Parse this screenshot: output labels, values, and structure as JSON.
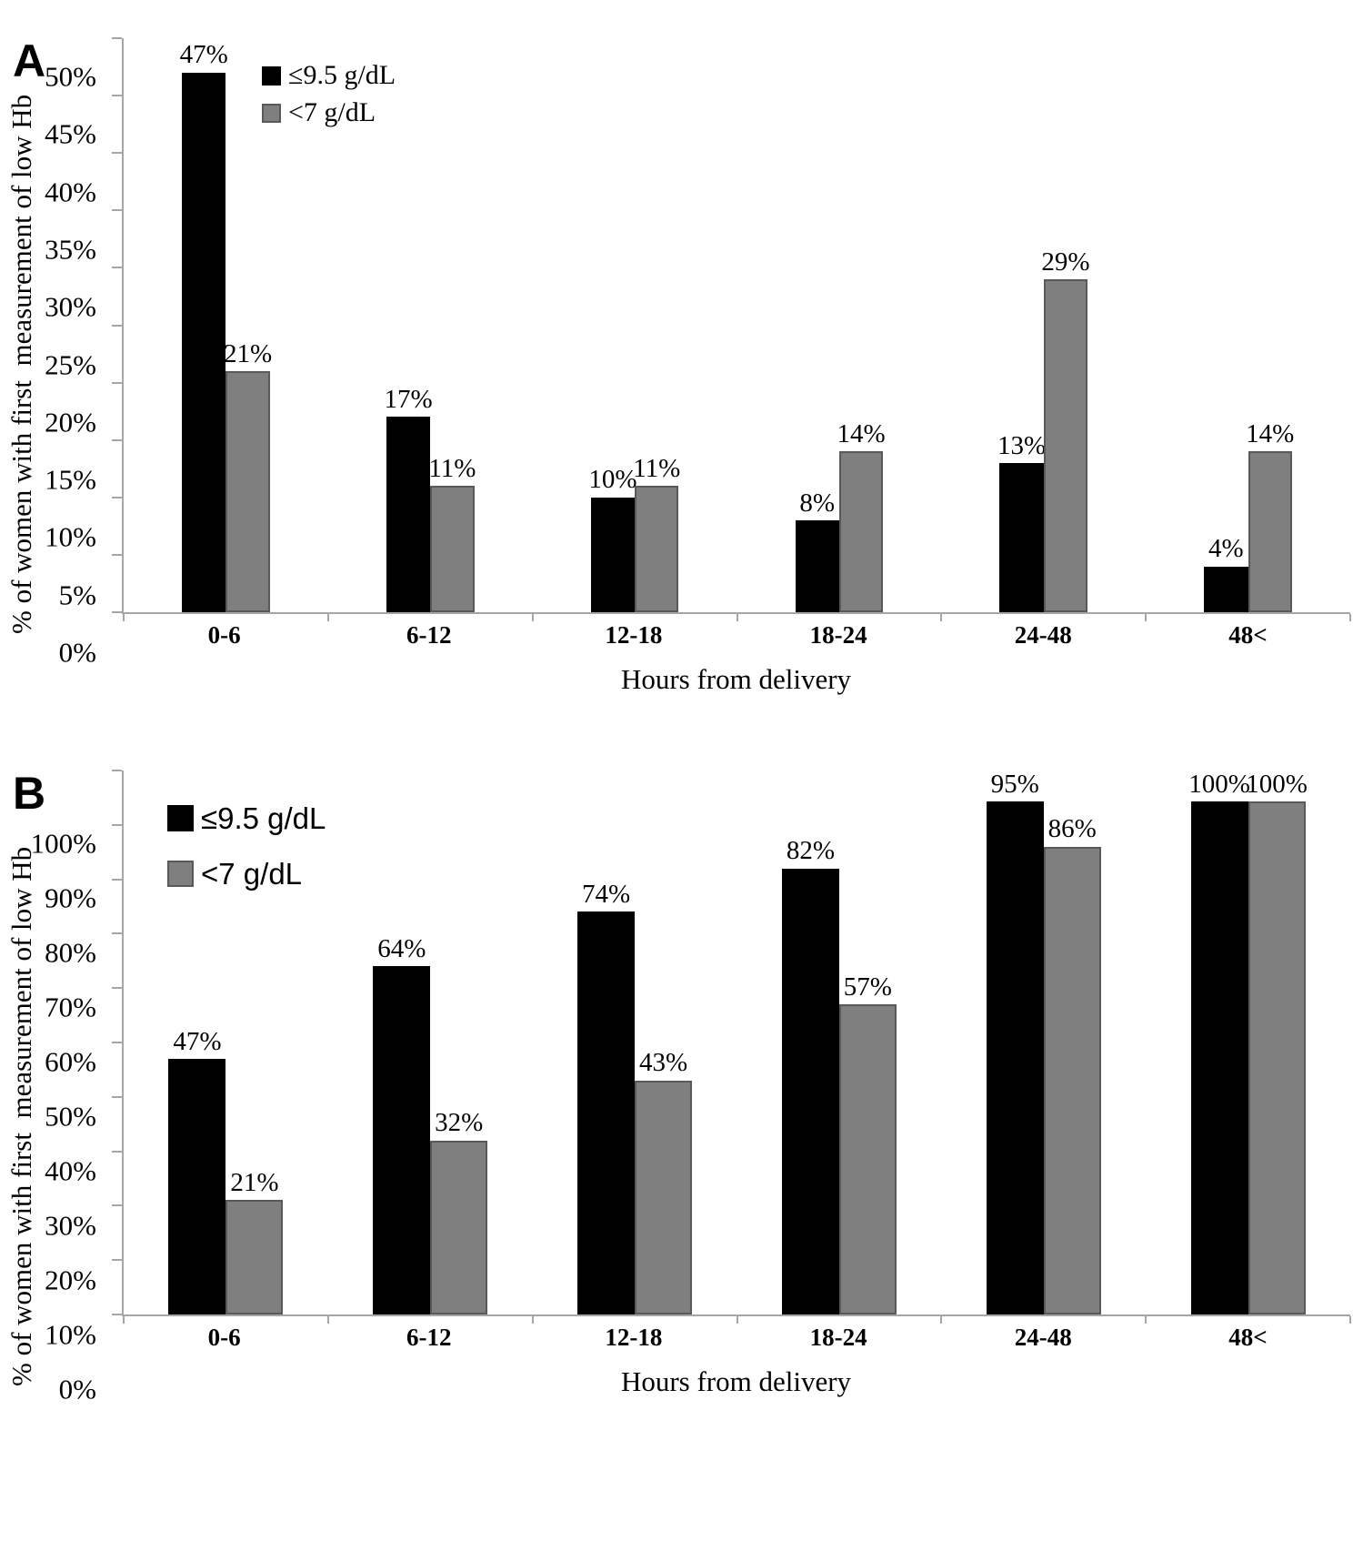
{
  "figure": {
    "axis_color": "#a6a6a6",
    "background": "#ffffff",
    "series_colors": {
      "le_9_5": "#000000",
      "lt_7": "#7f7f7f"
    }
  },
  "chart_data": [
    {
      "type": "bar",
      "panel_letter": "A",
      "title": "",
      "categories": [
        "0-6",
        "6-12",
        "12-18",
        "18-24",
        "24-48",
        "48<"
      ],
      "series": [
        {
          "name": "≤9.5 g/dL",
          "color": "#000000",
          "border": "#000000",
          "values": [
            47,
            17,
            10,
            8,
            13,
            4
          ]
        },
        {
          "name": "<7 g/dL",
          "color": "#7f7f7f",
          "border": "#595959",
          "values": [
            21,
            11,
            11,
            14,
            29,
            14
          ]
        }
      ],
      "xlabel": "Hours from delivery",
      "ylabel": "% of women with first  measurement of low Hb",
      "ylim": [
        0,
        50
      ],
      "ytick_step": 5,
      "ytick_labels": [
        "50%",
        "45%",
        "40%",
        "35%",
        "30%",
        "25%",
        "20%",
        "15%",
        "10%",
        "5%",
        "0%"
      ],
      "value_suffix": "%",
      "value_labels": [
        "47%",
        "17%",
        "10%",
        "8%",
        "13%",
        "4%",
        "21%",
        "11%",
        "11%",
        "14%",
        "29%",
        "14%"
      ],
      "legend_position": "top-left-inside",
      "grid": false
    },
    {
      "type": "bar",
      "panel_letter": "B",
      "title": "",
      "categories": [
        "0-6",
        "6-12",
        "12-18",
        "18-24",
        "24-48",
        "48<"
      ],
      "series": [
        {
          "name": "≤9.5 g/dL",
          "color": "#000000",
          "border": "#000000",
          "values": [
            47,
            64,
            74,
            82,
            95,
            100
          ]
        },
        {
          "name": "<7 g/dL",
          "color": "#7f7f7f",
          "border": "#595959",
          "values": [
            21,
            32,
            43,
            57,
            86,
            100
          ]
        }
      ],
      "xlabel": "Hours from delivery",
      "ylabel": "% of women with first  measurement of low Hb",
      "ylim": [
        0,
        100
      ],
      "ytick_step": 10,
      "ytick_labels": [
        "100%",
        "90%",
        "80%",
        "70%",
        "60%",
        "50%",
        "40%",
        "30%",
        "20%",
        "10%",
        "0%"
      ],
      "value_suffix": "%",
      "value_labels": [
        "47%",
        "64%",
        "74%",
        "82%",
        "95%",
        "100%",
        "21%",
        "32%",
        "43%",
        "57%",
        "86%",
        "100%"
      ],
      "legend_position": "top-left-inside",
      "grid": false
    }
  ]
}
